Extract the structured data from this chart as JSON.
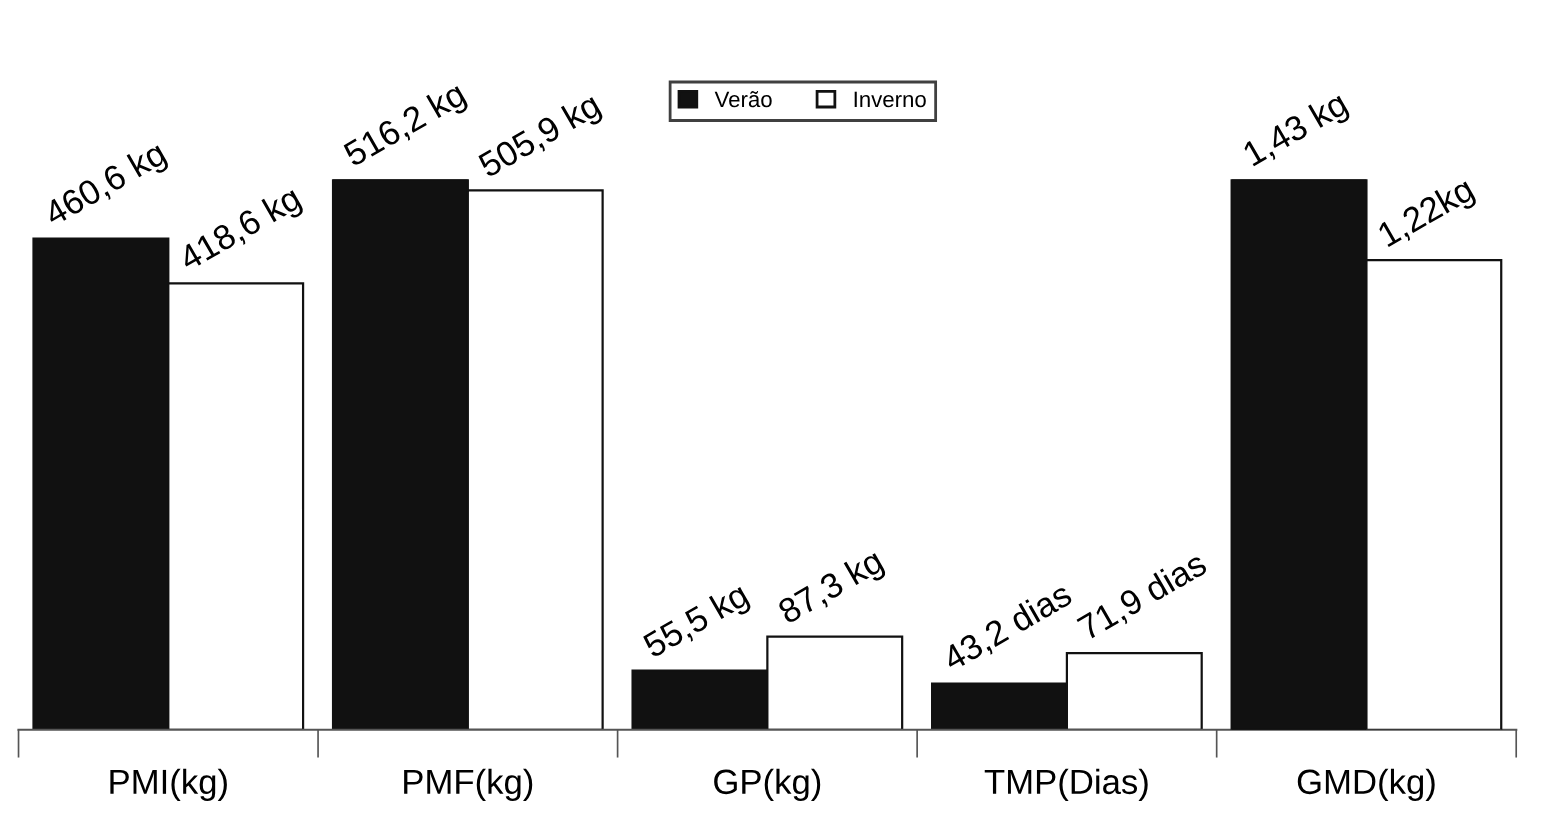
{
  "chart_data": {
    "type": "bar",
    "categories": [
      "PMI(kg)",
      "PMF(kg)",
      "GP(kg)",
      "TMP(Dias)",
      "GMD(kg)"
    ],
    "series": [
      {
        "name": "Verão",
        "color": "#111111",
        "values": [
          460.6,
          516.2,
          55.5,
          43.2,
          null
        ],
        "value_labels": [
          "460,6 kg",
          "516,2 kg",
          "55,5 kg",
          "43,2 dias",
          null
        ]
      },
      {
        "name": "Inverno",
        "color": "#ffffff",
        "values": [
          418.6,
          505.9,
          87.3,
          71.9,
          null
        ],
        "value_labels": [
          "418,6 kg",
          "505,9 kg",
          "87,3 kg",
          "71,9 dias",
          null
        ]
      },
      {
        "color": "#111111",
        "axis": "y2",
        "values": [
          null,
          null,
          null,
          null,
          1.43
        ],
        "value_labels": [
          null,
          null,
          null,
          null,
          "1,43 kg"
        ]
      },
      {
        "color": "#ffffff",
        "axis": "y2",
        "values": [
          null,
          null,
          null,
          null,
          1.22
        ],
        "value_labels": [
          null,
          null,
          null,
          null,
          "1,22kg"
        ]
      }
    ],
    "legend": "top",
    "grid": false
  }
}
